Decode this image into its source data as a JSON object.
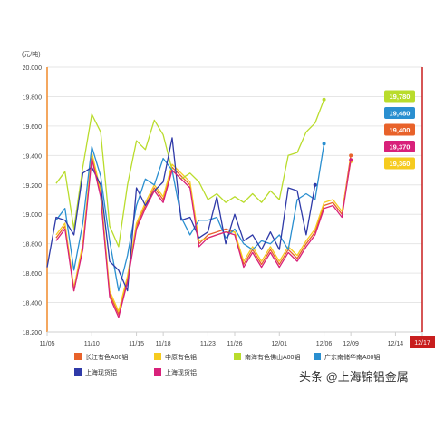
{
  "chart_data": {
    "type": "line",
    "ylabel": "(元/吨)",
    "ylim": [
      18200,
      20000
    ],
    "y_ticks": [
      "18.200",
      "18.400",
      "18.600",
      "18.800",
      "19.000",
      "19.200",
      "19.400",
      "19.600",
      "19.800",
      "20.000"
    ],
    "x_tick_labels": [
      "11/05",
      "11/10",
      "11/15",
      "11/18",
      "11/23",
      "11/26",
      "12/01",
      "12/06",
      "12/09",
      "12/14",
      "12/17"
    ],
    "x_dates": [
      "11/05",
      "11/06",
      "11/07",
      "11/08",
      "11/09",
      "11/10",
      "11/11",
      "11/12",
      "11/13",
      "11/14",
      "11/15",
      "11/16",
      "11/17",
      "11/18",
      "11/19",
      "11/20",
      "11/21",
      "11/22",
      "11/23",
      "11/24",
      "11/25",
      "11/26",
      "11/27",
      "11/28",
      "11/29",
      "11/30",
      "12/01",
      "12/02",
      "12/03",
      "12/04",
      "12/05",
      "12/06",
      "12/07",
      "12/08",
      "12/09",
      "12/10",
      "12/11",
      "12/12",
      "12/13",
      "12/14",
      "12/15",
      "12/16",
      "12/17"
    ],
    "x_range": [
      "11/05",
      "12/17"
    ],
    "highlight_x": "12/17",
    "grid": "horizontal",
    "legend_position": "bottom",
    "series": [
      {
        "name": "长江有色A00铝",
        "color": "#e8622a",
        "points": [
          [
            "11/06",
            18840
          ],
          [
            "11/07",
            18920
          ],
          [
            "11/08",
            18480
          ],
          [
            "11/09",
            18780
          ],
          [
            "11/10",
            19400
          ],
          [
            "11/11",
            19140
          ],
          [
            "11/12",
            18460
          ],
          [
            "11/13",
            18320
          ],
          [
            "11/14",
            18560
          ],
          [
            "11/15",
            18920
          ],
          [
            "11/16",
            19060
          ],
          [
            "11/17",
            19180
          ],
          [
            "11/18",
            19100
          ],
          [
            "11/19",
            19320
          ],
          [
            "11/20",
            19260
          ],
          [
            "11/21",
            19200
          ],
          [
            "11/22",
            18800
          ],
          [
            "11/23",
            18860
          ],
          [
            "11/24",
            18880
          ],
          [
            "11/25",
            18900
          ],
          [
            "11/26",
            18880
          ],
          [
            "11/27",
            18660
          ],
          [
            "11/28",
            18760
          ],
          [
            "11/29",
            18660
          ],
          [
            "11/30",
            18760
          ],
          [
            "12/01",
            18660
          ],
          [
            "12/02",
            18760
          ],
          [
            "12/03",
            18700
          ],
          [
            "12/04",
            18800
          ],
          [
            "12/05",
            18880
          ],
          [
            "12/06",
            19060
          ],
          [
            "12/07",
            19080
          ],
          [
            "12/08",
            19000
          ],
          [
            "12/09",
            19400
          ]
        ]
      },
      {
        "name": "中原有色铝",
        "color": "#f6cb1f",
        "points": [
          [
            "11/06",
            18860
          ],
          [
            "11/07",
            18940
          ],
          [
            "11/08",
            18500
          ],
          [
            "11/09",
            18800
          ],
          [
            "11/10",
            19420
          ],
          [
            "11/11",
            19160
          ],
          [
            "11/12",
            18480
          ],
          [
            "11/13",
            18340
          ],
          [
            "11/14",
            18580
          ],
          [
            "11/15",
            18940
          ],
          [
            "11/16",
            19080
          ],
          [
            "11/17",
            19200
          ],
          [
            "11/18",
            19120
          ],
          [
            "11/19",
            19340
          ],
          [
            "11/20",
            19280
          ],
          [
            "11/21",
            19220
          ],
          [
            "11/22",
            18820
          ],
          [
            "11/23",
            18840
          ],
          [
            "11/24",
            18860
          ],
          [
            "11/25",
            18880
          ],
          [
            "11/26",
            18880
          ],
          [
            "11/27",
            18680
          ],
          [
            "11/28",
            18780
          ],
          [
            "11/29",
            18680
          ],
          [
            "11/30",
            18780
          ],
          [
            "12/01",
            18680
          ],
          [
            "12/02",
            18780
          ],
          [
            "12/03",
            18720
          ],
          [
            "12/04",
            18820
          ],
          [
            "12/05",
            18900
          ],
          [
            "12/06",
            19080
          ],
          [
            "12/07",
            19100
          ],
          [
            "12/08",
            19020
          ],
          [
            "12/09",
            19360
          ]
        ]
      },
      {
        "name": "南海有色佛山A00铝",
        "color": "#b9dc2c",
        "points": [
          [
            "11/06",
            19210
          ],
          [
            "11/07",
            19290
          ],
          [
            "11/08",
            18900
          ],
          [
            "11/09",
            19320
          ],
          [
            "11/10",
            19680
          ],
          [
            "11/11",
            19560
          ],
          [
            "11/12",
            18920
          ],
          [
            "11/13",
            18780
          ],
          [
            "11/14",
            19200
          ],
          [
            "11/15",
            19500
          ],
          [
            "11/16",
            19440
          ],
          [
            "11/17",
            19640
          ],
          [
            "11/18",
            19540
          ],
          [
            "11/19",
            19300
          ],
          [
            "11/20",
            19240
          ],
          [
            "11/21",
            19280
          ],
          [
            "11/22",
            19220
          ],
          [
            "11/23",
            19100
          ],
          [
            "11/24",
            19140
          ],
          [
            "11/25",
            19080
          ],
          [
            "11/26",
            19120
          ],
          [
            "11/27",
            19080
          ],
          [
            "11/28",
            19140
          ],
          [
            "11/29",
            19080
          ],
          [
            "11/30",
            19160
          ],
          [
            "12/01",
            19100
          ],
          [
            "12/02",
            19400
          ],
          [
            "12/03",
            19420
          ],
          [
            "12/04",
            19560
          ],
          [
            "12/05",
            19620
          ],
          [
            "12/06",
            19780
          ]
        ]
      },
      {
        "name": "广东南储华南A00铝",
        "color": "#2a8fd0",
        "points": [
          [
            "11/06",
            18960
          ],
          [
            "11/07",
            19040
          ],
          [
            "11/08",
            18620
          ],
          [
            "11/09",
            18940
          ],
          [
            "11/10",
            19460
          ],
          [
            "11/11",
            19260
          ],
          [
            "11/12",
            18820
          ],
          [
            "11/13",
            18480
          ],
          [
            "11/14",
            18720
          ],
          [
            "11/15",
            19060
          ],
          [
            "11/16",
            19240
          ],
          [
            "11/17",
            19200
          ],
          [
            "11/18",
            19380
          ],
          [
            "11/19",
            19300
          ],
          [
            "11/20",
            18980
          ],
          [
            "11/21",
            18860
          ],
          [
            "11/22",
            18960
          ],
          [
            "11/23",
            18960
          ],
          [
            "11/24",
            18980
          ],
          [
            "11/25",
            18840
          ],
          [
            "11/26",
            18900
          ],
          [
            "11/27",
            18800
          ],
          [
            "11/28",
            18760
          ],
          [
            "11/29",
            18820
          ],
          [
            "11/30",
            18800
          ],
          [
            "12/01",
            18860
          ],
          [
            "12/02",
            18760
          ],
          [
            "12/03",
            19100
          ],
          [
            "12/04",
            19140
          ],
          [
            "12/05",
            19100
          ],
          [
            "12/06",
            19480
          ]
        ]
      },
      {
        "name": "上海现货铝",
        "color": "#2f3aa8",
        "points": [
          [
            "11/05",
            18640
          ],
          [
            "11/06",
            18980
          ],
          [
            "11/07",
            18960
          ],
          [
            "11/08",
            18860
          ],
          [
            "11/09",
            19280
          ],
          [
            "11/10",
            19320
          ],
          [
            "11/11",
            19200
          ],
          [
            "11/12",
            18680
          ],
          [
            "11/13",
            18620
          ],
          [
            "11/14",
            18480
          ],
          [
            "11/15",
            19180
          ],
          [
            "11/16",
            19060
          ],
          [
            "11/17",
            19160
          ],
          [
            "11/18",
            19220
          ],
          [
            "11/19",
            19520
          ],
          [
            "11/20",
            18960
          ],
          [
            "11/21",
            18980
          ],
          [
            "11/22",
            18840
          ],
          [
            "11/23",
            18880
          ],
          [
            "11/24",
            19120
          ],
          [
            "11/25",
            18800
          ],
          [
            "11/26",
            19000
          ],
          [
            "11/27",
            18820
          ],
          [
            "11/28",
            18860
          ],
          [
            "11/29",
            18760
          ],
          [
            "11/30",
            18880
          ],
          [
            "12/01",
            18760
          ],
          [
            "12/02",
            19180
          ],
          [
            "12/03",
            19160
          ],
          [
            "12/04",
            18860
          ],
          [
            "12/05",
            19200
          ]
        ]
      },
      {
        "name": "上海现货铝",
        "color": "#d8217a",
        "points": [
          [
            "11/06",
            18820
          ],
          [
            "11/07",
            18900
          ],
          [
            "11/08",
            18480
          ],
          [
            "11/09",
            18760
          ],
          [
            "11/10",
            19380
          ],
          [
            "11/11",
            19120
          ],
          [
            "11/12",
            18440
          ],
          [
            "11/13",
            18300
          ],
          [
            "11/14",
            18540
          ],
          [
            "11/15",
            18900
          ],
          [
            "11/16",
            19040
          ],
          [
            "11/17",
            19160
          ],
          [
            "11/18",
            19080
          ],
          [
            "11/19",
            19300
          ],
          [
            "11/20",
            19240
          ],
          [
            "11/21",
            19180
          ],
          [
            "11/22",
            18780
          ],
          [
            "11/23",
            18840
          ],
          [
            "11/24",
            18860
          ],
          [
            "11/25",
            18880
          ],
          [
            "11/26",
            18860
          ],
          [
            "11/27",
            18640
          ],
          [
            "11/28",
            18740
          ],
          [
            "11/29",
            18640
          ],
          [
            "11/30",
            18740
          ],
          [
            "12/01",
            18640
          ],
          [
            "12/02",
            18740
          ],
          [
            "12/03",
            18680
          ],
          [
            "12/04",
            18780
          ],
          [
            "12/05",
            18860
          ],
          [
            "12/06",
            19040
          ],
          [
            "12/07",
            19060
          ],
          [
            "12/08",
            18980
          ],
          [
            "12/09",
            19370
          ]
        ]
      }
    ],
    "end_labels": [
      {
        "text": "19,780",
        "color": "#b9dc2c"
      },
      {
        "text": "19,480",
        "color": "#2a8fd0"
      },
      {
        "text": "19,400",
        "color": "#e8622a"
      },
      {
        "text": "19,370",
        "color": "#d8217a"
      },
      {
        "text": "19,360",
        "color": "#f6cb1f"
      }
    ],
    "legend": [
      {
        "label": "长江有色A00铝",
        "color": "#e8622a"
      },
      {
        "label": "中原有色铝",
        "color": "#f6cb1f"
      },
      {
        "label": "南海有色佛山A00铝",
        "color": "#b9dc2c"
      },
      {
        "label": "广东南储华南A00铝",
        "color": "#2a8fd0"
      },
      {
        "label": "上海现货铝",
        "color": "#2f3aa8"
      },
      {
        "label": "上海现货铝",
        "color": "#d8217a"
      }
    ],
    "watermark": "头条 @上海锦铝金属"
  }
}
